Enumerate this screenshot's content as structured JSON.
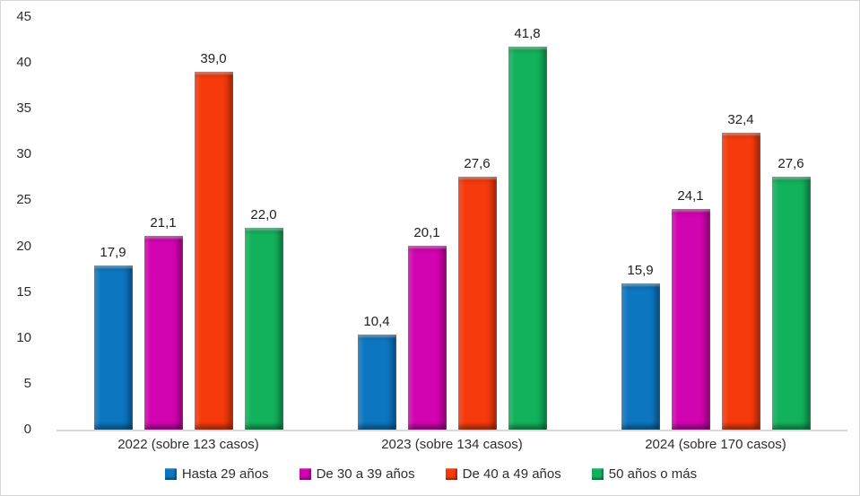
{
  "chart_data": {
    "type": "bar",
    "title": "",
    "categories": [
      "2022 (sobre 123 casos)",
      "2023 (sobre 134 casos)",
      "2024 (sobre 170 casos)"
    ],
    "series": [
      {
        "name": "Hasta 29 años",
        "color": "#0d76c1",
        "values": [
          17.9,
          10.4,
          15.9
        ],
        "labels": [
          "17,9",
          "10,4",
          "15,9"
        ]
      },
      {
        "name": "De 30 a 39 años",
        "color": "#d203b0",
        "values": [
          21.1,
          20.1,
          24.1
        ],
        "labels": [
          "21,1",
          "20,1",
          "24,1"
        ]
      },
      {
        "name": "De 40 a 49 años",
        "color": "#f63a0c",
        "values": [
          39.0,
          27.6,
          32.4
        ],
        "labels": [
          "39,0",
          "27,6",
          "32,4"
        ]
      },
      {
        "name": "50 años o más",
        "color": "#12b25c",
        "values": [
          22.0,
          41.8,
          27.6
        ],
        "labels": [
          "22,0",
          "41,8",
          "27,6"
        ]
      }
    ],
    "ylim": [
      0,
      45
    ],
    "y_ticks": [
      "45",
      "40",
      "35",
      "30",
      "25",
      "20",
      "15",
      "10",
      "5",
      "0"
    ],
    "grid": false,
    "legend_position": "bottom",
    "axis_line_color": "#d9d9d9"
  }
}
